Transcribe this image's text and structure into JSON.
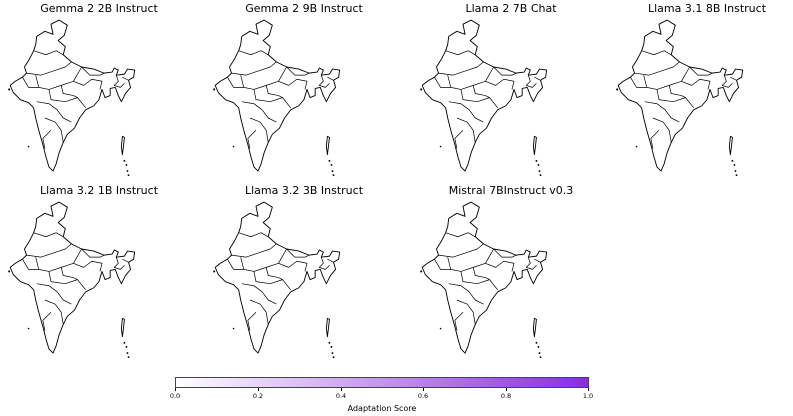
{
  "panels": [
    {
      "title": "Gemma 2 2B Instruct"
    },
    {
      "title": "Gemma 2 9B Instruct"
    },
    {
      "title": "Llama 2 7B Chat"
    },
    {
      "title": "Llama 3.1 8B Instruct"
    },
    {
      "title": "Llama 3.2 1B Instruct"
    },
    {
      "title": "Llama 3.2 3B Instruct"
    },
    {
      "title": "Mistral 7BInstruct v0.3"
    }
  ],
  "colorbar": {
    "label": "Adaptation Score",
    "min": 0.0,
    "max": 1.0,
    "color_start": "#ffffff",
    "color_end": "#8a2be2",
    "ticks": [
      "0.0",
      "0.2",
      "0.4",
      "0.6",
      "0.8",
      "1.0"
    ]
  }
}
